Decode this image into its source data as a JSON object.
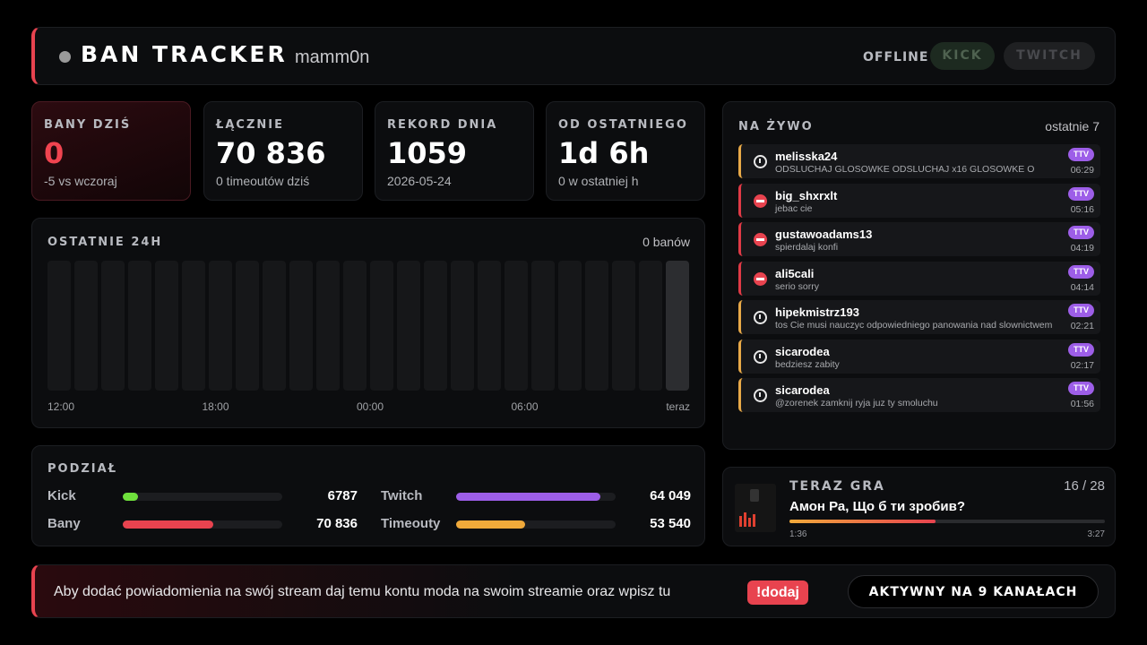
{
  "header": {
    "title": "BAN TRACKER",
    "user": "mamm0n",
    "status": "OFFLINE",
    "buttons": [
      "KICK",
      "TWITCH"
    ]
  },
  "stats": [
    {
      "label": "BANY DZIŚ",
      "value": "0",
      "sub": "-5 vs wczoraj"
    },
    {
      "label": "ŁĄCZNIE",
      "value": "70 836",
      "sub": "0 timeoutów dziś"
    },
    {
      "label": "REKORD DNIA",
      "value": "1059",
      "sub": "2026-05-24"
    },
    {
      "label": "OD OSTATNIEGO",
      "value": "1d 6h",
      "sub": "0 w ostatniej h"
    }
  ],
  "chart": {
    "title": "OSTATNIE 24H",
    "count": "0 banów",
    "axis_labels": [
      "12:00",
      "18:00",
      "00:00",
      "06:00",
      "teraz"
    ]
  },
  "split": {
    "title": "PODZIAŁ",
    "rows": [
      [
        {
          "name": "Kick",
          "value": 6787,
          "color": "#6fe03c"
        },
        {
          "name": "Twitch",
          "value": 64049,
          "value_label": "64 049",
          "color": "#9d5ee8"
        }
      ],
      [
        {
          "name": "Bany",
          "value": 70836,
          "value_label": "70 836",
          "color": "#e8434f"
        },
        {
          "name": "Timeouty",
          "value": 53540,
          "value_label": "53 540",
          "color": "#f0a93a"
        }
      ]
    ]
  },
  "feed": {
    "title": "NA ŻYWO",
    "note": "ostatnie 7",
    "items": [
      {
        "user": "melisska24",
        "message": "ODSLUCHAJ GLOSOWKE ODSLUCHAJ x16 GLOSOWKE O",
        "platform": "TTV",
        "time": "06:29",
        "kind": "timeout"
      },
      {
        "user": "big_shxrxlt",
        "message": "jebac cie",
        "platform": "TTV",
        "time": "05:16",
        "kind": "ban"
      },
      {
        "user": "gustawoadams13",
        "message": "spierdalaj konfi",
        "platform": "TTV",
        "time": "04:19",
        "kind": "ban"
      },
      {
        "user": "ali5cali",
        "message": "serio sorry",
        "platform": "TTV",
        "time": "04:14",
        "kind": "ban"
      },
      {
        "user": "hipekmistrz193",
        "message": "tos Cie musi nauczyc odpowiedniego panowania nad slownictwem",
        "platform": "TTV",
        "time": "02:21",
        "kind": "timeout"
      },
      {
        "user": "sicarodea",
        "message": "bedziesz zabity",
        "platform": "TTV",
        "time": "02:17",
        "kind": "timeout"
      },
      {
        "user": "sicarodea",
        "message": "@zorenek zamknij ryja juz ty smoluchu",
        "platform": "TTV",
        "time": "01:56",
        "kind": "timeout"
      }
    ]
  },
  "now_playing": {
    "label": "TERAZ GRA",
    "position": "16 / 28",
    "song": "Амон Ра, Що б ти зробив?",
    "elapsed": "1:36",
    "duration": "3:27"
  },
  "footer": {
    "text": "Aby dodać powiadomienia na swój stream daj temu kontu moda na swoim streamie oraz wpisz tu",
    "command": "!dodaj",
    "badge": "AKTYWNY NA 9 KANAŁACH"
  }
}
